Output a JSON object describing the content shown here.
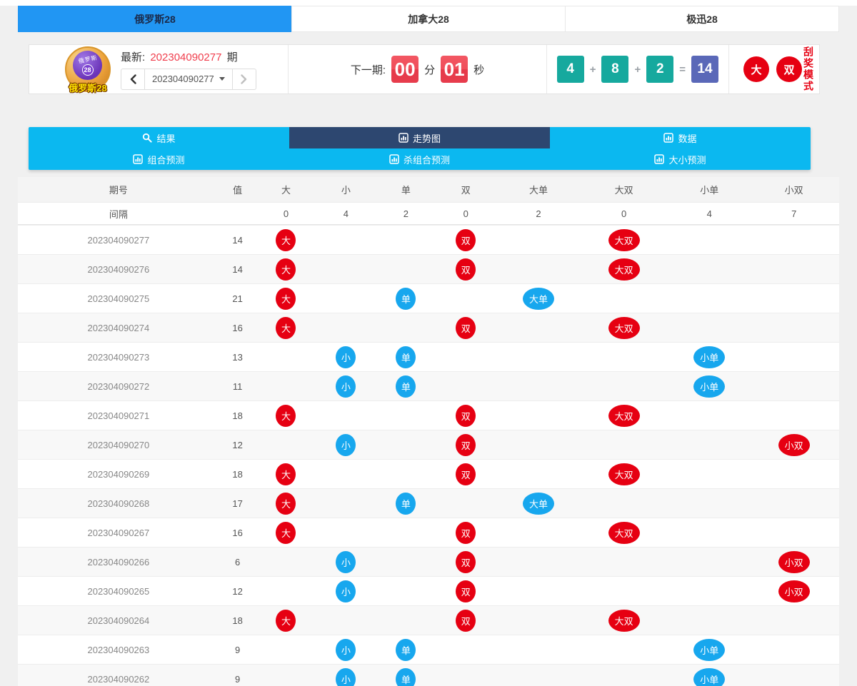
{
  "colors": {
    "red": "#e60012",
    "blue": "#17a7ee",
    "teal": "#16a99e",
    "indigo": "#5a68b8",
    "tab_blue": "#2196f3",
    "nav_cyan": "#0bb8f0",
    "nav_active": "#2d4770",
    "countdown_red": "#ee4450",
    "latest_red": "#f03e4d"
  },
  "tabs": [
    {
      "id": "russia28",
      "label": "俄罗斯28",
      "active": true
    },
    {
      "id": "canada28",
      "label": "加拿大28",
      "active": false
    },
    {
      "id": "jixun28",
      "label": "极迅28",
      "active": false
    }
  ],
  "header": {
    "logo": {
      "title": "俄罗斯28",
      "ball_text": "俄罗斯",
      "ball_number": "28"
    },
    "latest": {
      "label": "最新:",
      "number": "202304090277",
      "suffix": "期"
    },
    "selector": {
      "value": "202304090277"
    },
    "countdown": {
      "label": "下一期:",
      "minutes": "00",
      "minutes_unit": "分",
      "seconds": "01",
      "seconds_unit": "秒"
    },
    "equation": {
      "numbers": [
        "4",
        "8",
        "2"
      ],
      "plus": "+",
      "equals": "=",
      "result": "14"
    },
    "result_badges": [
      "大",
      "双"
    ],
    "mode_text": "刮奖模式"
  },
  "nav": {
    "rows": [
      [
        {
          "id": "results",
          "label": "结果",
          "icon": "search",
          "active": false
        },
        {
          "id": "trend-chart",
          "label": "走势图",
          "icon": "chart",
          "active": true
        },
        {
          "id": "data",
          "label": "数据",
          "icon": "chart",
          "active": false
        }
      ],
      [
        {
          "id": "combo-forecast",
          "label": "组合预测",
          "icon": "chart",
          "active": false
        },
        {
          "id": "kill-combo-forecast",
          "label": "杀组合预测",
          "icon": "chart",
          "active": false
        },
        {
          "id": "bigsmall-forecast",
          "label": "大小预测",
          "icon": "chart",
          "active": false
        }
      ]
    ]
  },
  "table": {
    "headers": [
      "期号",
      "值",
      "大",
      "小",
      "单",
      "双",
      "大单",
      "大双",
      "小单",
      "小双"
    ],
    "interval": {
      "label": "间隔",
      "values": [
        "0",
        "4",
        "2",
        "0",
        "2",
        "0",
        "4",
        "7"
      ]
    },
    "badge_colors": {
      "大": "red",
      "小": "blue",
      "单": "blue",
      "双": "red",
      "大单": "blue",
      "大双": "red",
      "小单": "blue",
      "小双": "red"
    },
    "rows": [
      {
        "period": "202304090277",
        "value": "14",
        "marks": [
          "大",
          "",
          "",
          "双",
          "",
          "大双",
          "",
          ""
        ]
      },
      {
        "period": "202304090276",
        "value": "14",
        "marks": [
          "大",
          "",
          "",
          "双",
          "",
          "大双",
          "",
          ""
        ]
      },
      {
        "period": "202304090275",
        "value": "21",
        "marks": [
          "大",
          "",
          "单",
          "",
          "大单",
          "",
          "",
          ""
        ]
      },
      {
        "period": "202304090274",
        "value": "16",
        "marks": [
          "大",
          "",
          "",
          "双",
          "",
          "大双",
          "",
          ""
        ]
      },
      {
        "period": "202304090273",
        "value": "13",
        "marks": [
          "",
          "小",
          "单",
          "",
          "",
          "",
          "小单",
          ""
        ]
      },
      {
        "period": "202304090272",
        "value": "11",
        "marks": [
          "",
          "小",
          "单",
          "",
          "",
          "",
          "小单",
          ""
        ]
      },
      {
        "period": "202304090271",
        "value": "18",
        "marks": [
          "大",
          "",
          "",
          "双",
          "",
          "大双",
          "",
          ""
        ]
      },
      {
        "period": "202304090270",
        "value": "12",
        "marks": [
          "",
          "小",
          "",
          "双",
          "",
          "",
          "",
          "小双"
        ]
      },
      {
        "period": "202304090269",
        "value": "18",
        "marks": [
          "大",
          "",
          "",
          "双",
          "",
          "大双",
          "",
          ""
        ]
      },
      {
        "period": "202304090268",
        "value": "17",
        "marks": [
          "大",
          "",
          "单",
          "",
          "大单",
          "",
          "",
          ""
        ]
      },
      {
        "period": "202304090267",
        "value": "16",
        "marks": [
          "大",
          "",
          "",
          "双",
          "",
          "大双",
          "",
          ""
        ]
      },
      {
        "period": "202304090266",
        "value": "6",
        "marks": [
          "",
          "小",
          "",
          "双",
          "",
          "",
          "",
          "小双"
        ]
      },
      {
        "period": "202304090265",
        "value": "12",
        "marks": [
          "",
          "小",
          "",
          "双",
          "",
          "",
          "",
          "小双"
        ]
      },
      {
        "period": "202304090264",
        "value": "18",
        "marks": [
          "大",
          "",
          "",
          "双",
          "",
          "大双",
          "",
          ""
        ]
      },
      {
        "period": "202304090263",
        "value": "9",
        "marks": [
          "",
          "小",
          "单",
          "",
          "",
          "",
          "小单",
          ""
        ]
      },
      {
        "period": "202304090262",
        "value": "9",
        "marks": [
          "",
          "小",
          "单",
          "",
          "",
          "",
          "小单",
          ""
        ]
      }
    ]
  }
}
